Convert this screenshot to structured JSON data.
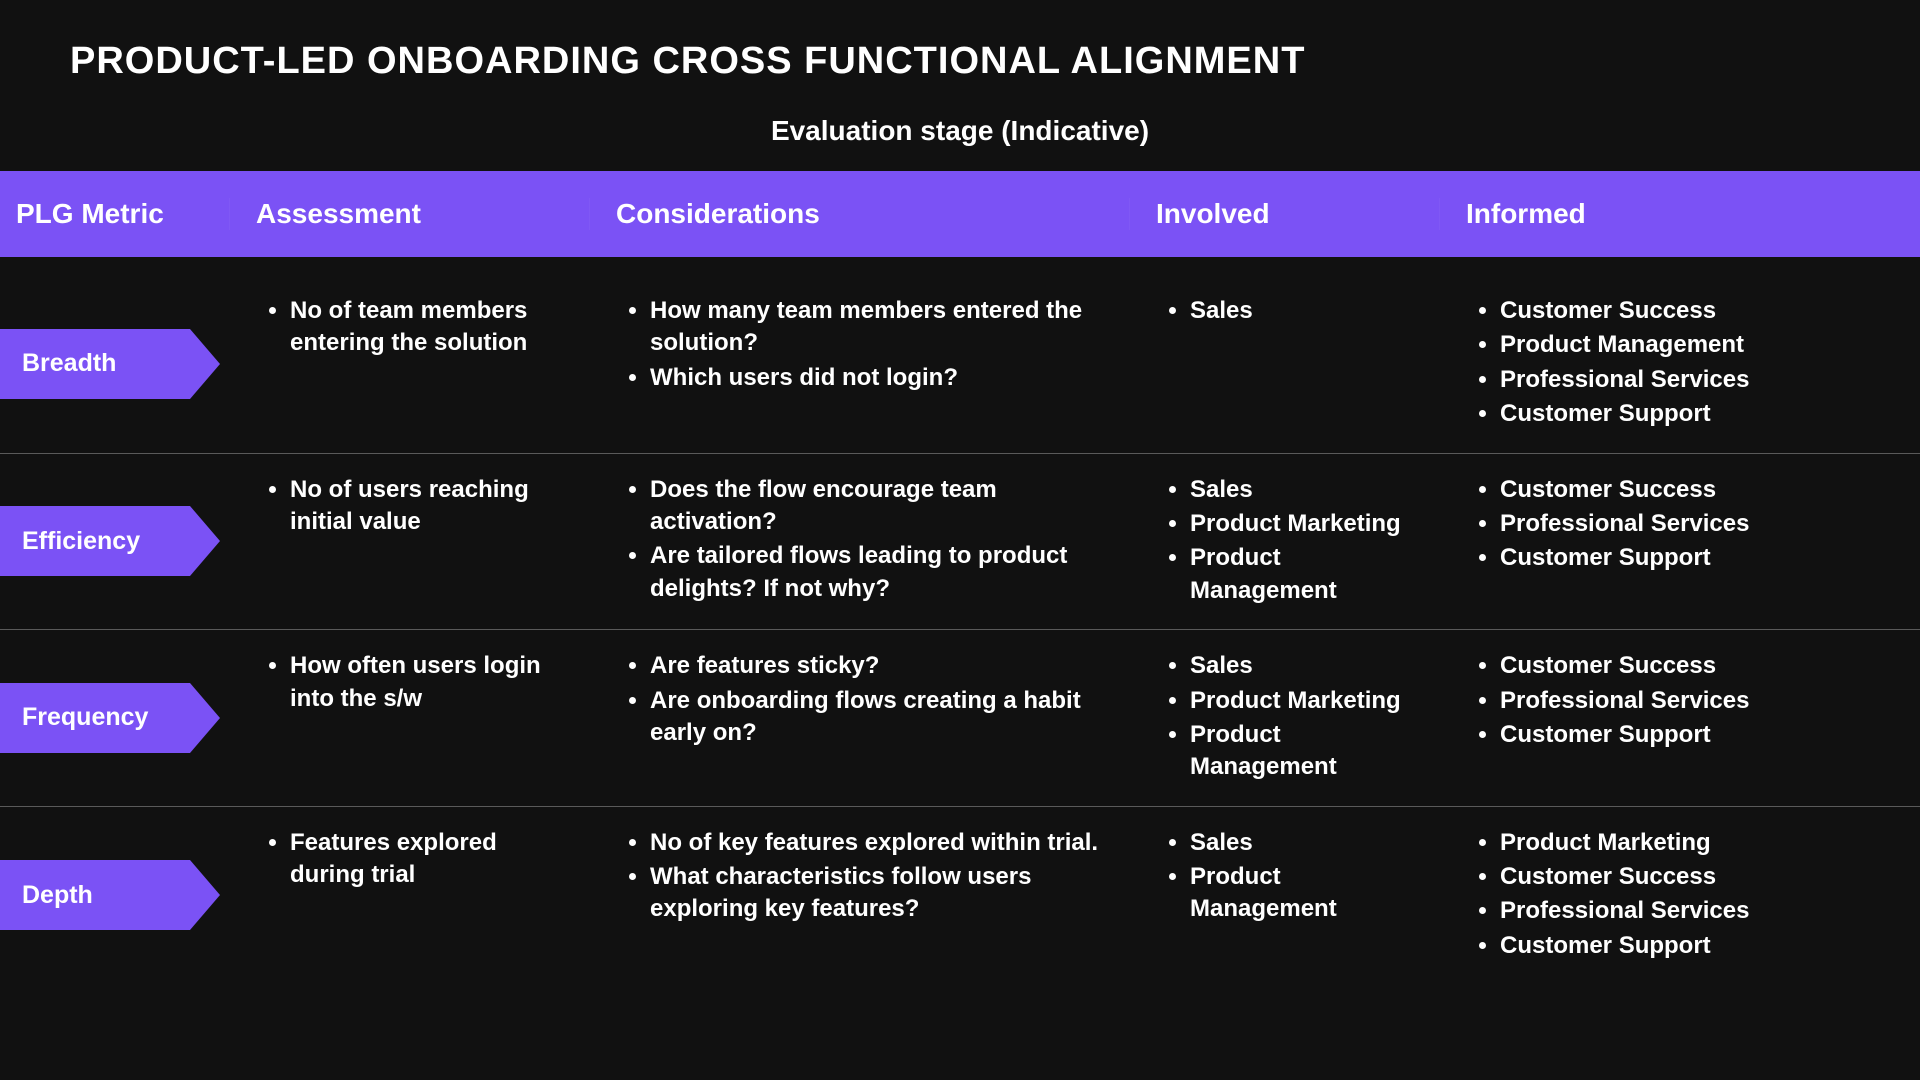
{
  "colors": {
    "background": "#111111",
    "accent": "#7B52F5",
    "text": "#ffffff",
    "divider": "#5a5a5a"
  },
  "title": "PRODUCT-LED ONBOARDING CROSS FUNCTIONAL ALIGNMENT",
  "subtitle": "Evaluation stage (Indicative)",
  "columns": {
    "metric": "PLG Metric",
    "assessment": "Assessment",
    "considerations": "Considerations",
    "involved": "Involved",
    "informed": "Informed"
  },
  "rows": [
    {
      "metric": "Breadth",
      "assessment": [
        "No of team members entering the solution"
      ],
      "considerations": [
        "How many team members entered the solution?",
        "Which users did not login?"
      ],
      "involved": [
        "Sales"
      ],
      "informed": [
        "Customer Success",
        "Product Management",
        "Professional Services",
        "Customer Support"
      ]
    },
    {
      "metric": "Efficiency",
      "assessment": [
        "No of users reaching initial value"
      ],
      "considerations": [
        "Does the flow encourage team activation?",
        "Are tailored flows leading to product delights?  If not why?"
      ],
      "involved": [
        "Sales",
        "Product Marketing",
        "Product Management"
      ],
      "informed": [
        "Customer Success",
        "Professional Services",
        "Customer Support"
      ]
    },
    {
      "metric": "Frequency",
      "assessment": [
        "How often users login into the s/w"
      ],
      "considerations": [
        "Are features sticky?",
        "Are onboarding flows creating a habit early on?"
      ],
      "involved": [
        "Sales",
        "Product Marketing",
        "Product Management"
      ],
      "informed": [
        "Customer Success",
        "Professional Services",
        "Customer Support"
      ]
    },
    {
      "metric": "Depth",
      "assessment": [
        "Features explored during trial"
      ],
      "considerations": [
        "No of key features explored within trial.",
        "What characteristics follow users exploring key features?"
      ],
      "involved": [
        "Sales",
        "Product Management"
      ],
      "informed": [
        "Product Marketing",
        "Customer Success",
        "Professional Services",
        "Customer Support"
      ]
    }
  ]
}
